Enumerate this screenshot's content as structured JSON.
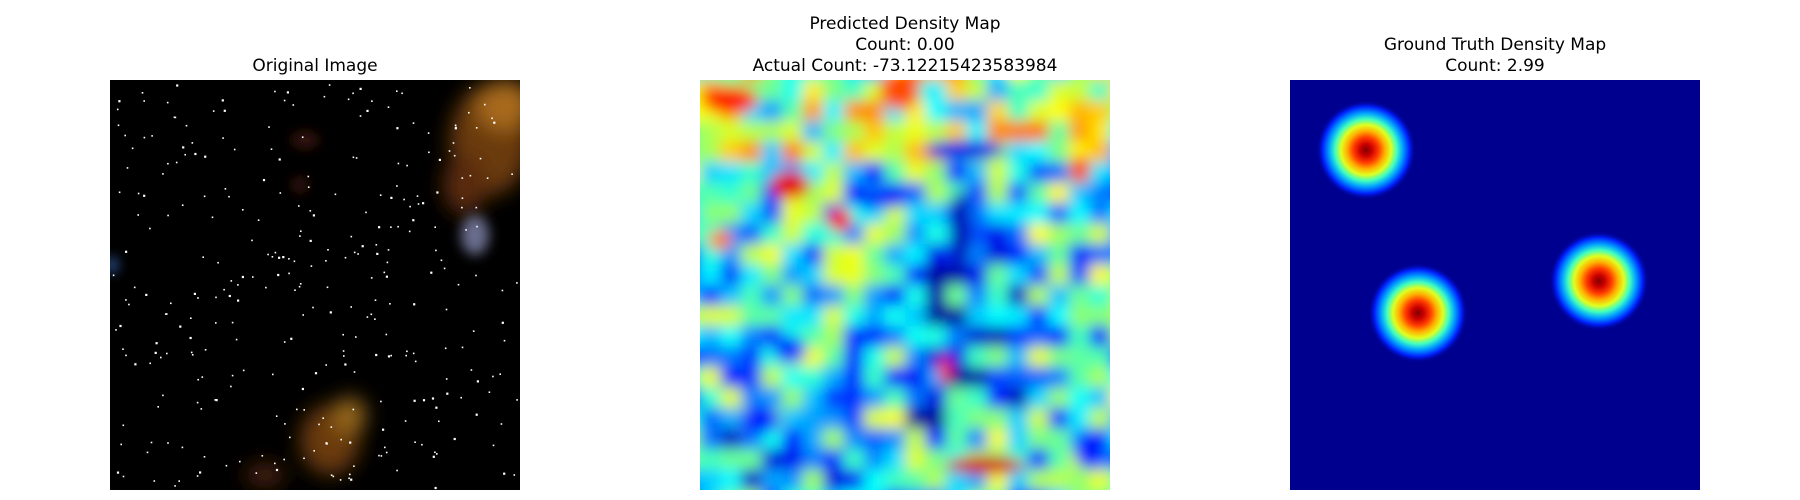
{
  "panels": [
    {
      "id": "original",
      "title_lines": [
        "Original Image"
      ]
    },
    {
      "id": "predicted",
      "title_lines": [
        "Predicted Density Map",
        "Count: 0.00",
        "Actual Count: -73.12215423583984"
      ]
    },
    {
      "id": "ground_truth",
      "title_lines": [
        "Ground Truth Density Map",
        "Count: 2.99"
      ]
    }
  ],
  "colors": {
    "background": "#ffffff",
    "jet_low": "#00008f",
    "jet_high": "#800000"
  }
}
